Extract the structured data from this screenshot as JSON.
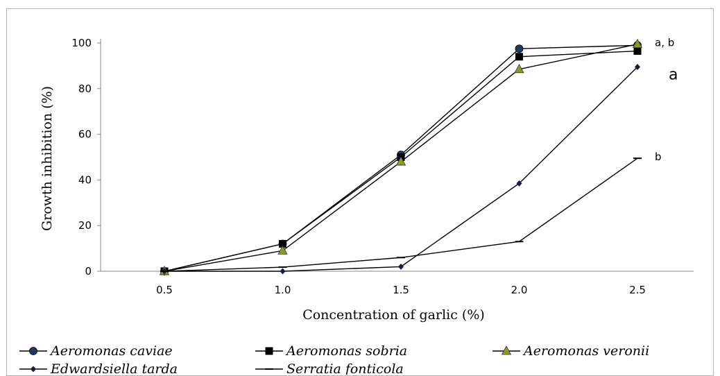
{
  "chart_data": {
    "type": "line",
    "title": "",
    "xlabel": "Concentration of garlic (%)",
    "ylabel": "Growth inhibition (%)",
    "x": [
      "0.5",
      "1.0",
      "1.5",
      "2.0",
      "2.5"
    ],
    "ylim": [
      0,
      100
    ],
    "yticks": [
      "0",
      "20",
      "40",
      "60",
      "80",
      "100"
    ],
    "grid": false,
    "legend_position": "bottom",
    "series": [
      {
        "name": "Aeromonas caviae",
        "values": [
          0,
          12,
          51,
          97.5,
          99
        ],
        "marker": "circle",
        "color": "#1f3a5f"
      },
      {
        "name": "Aeromonas sobria",
        "values": [
          0,
          12,
          50,
          94,
          96.5
        ],
        "marker": "square",
        "color": "#000000"
      },
      {
        "name": "Aeromonas veronii",
        "values": [
          0,
          9,
          48,
          88.5,
          99.5
        ],
        "marker": "triangle",
        "color": "#4b5d16"
      },
      {
        "name": "Edwardsiella tarda",
        "values": [
          0,
          0,
          2,
          38.5,
          89.5
        ],
        "marker": "diamond",
        "color": "#1a1a3a"
      },
      {
        "name": "Serratia fonticola",
        "values": [
          0,
          1.8,
          6,
          13,
          49.5
        ],
        "marker": "dash",
        "color": "#000000"
      }
    ],
    "annotations": [
      {
        "text": "a, b",
        "x": "2.5",
        "y": 99.5,
        "size": "small"
      },
      {
        "text": "a",
        "x": "2.5",
        "y": 89.5,
        "size": "big"
      },
      {
        "text": "b",
        "x": "2.5",
        "y": 49.5,
        "size": "small"
      }
    ]
  }
}
